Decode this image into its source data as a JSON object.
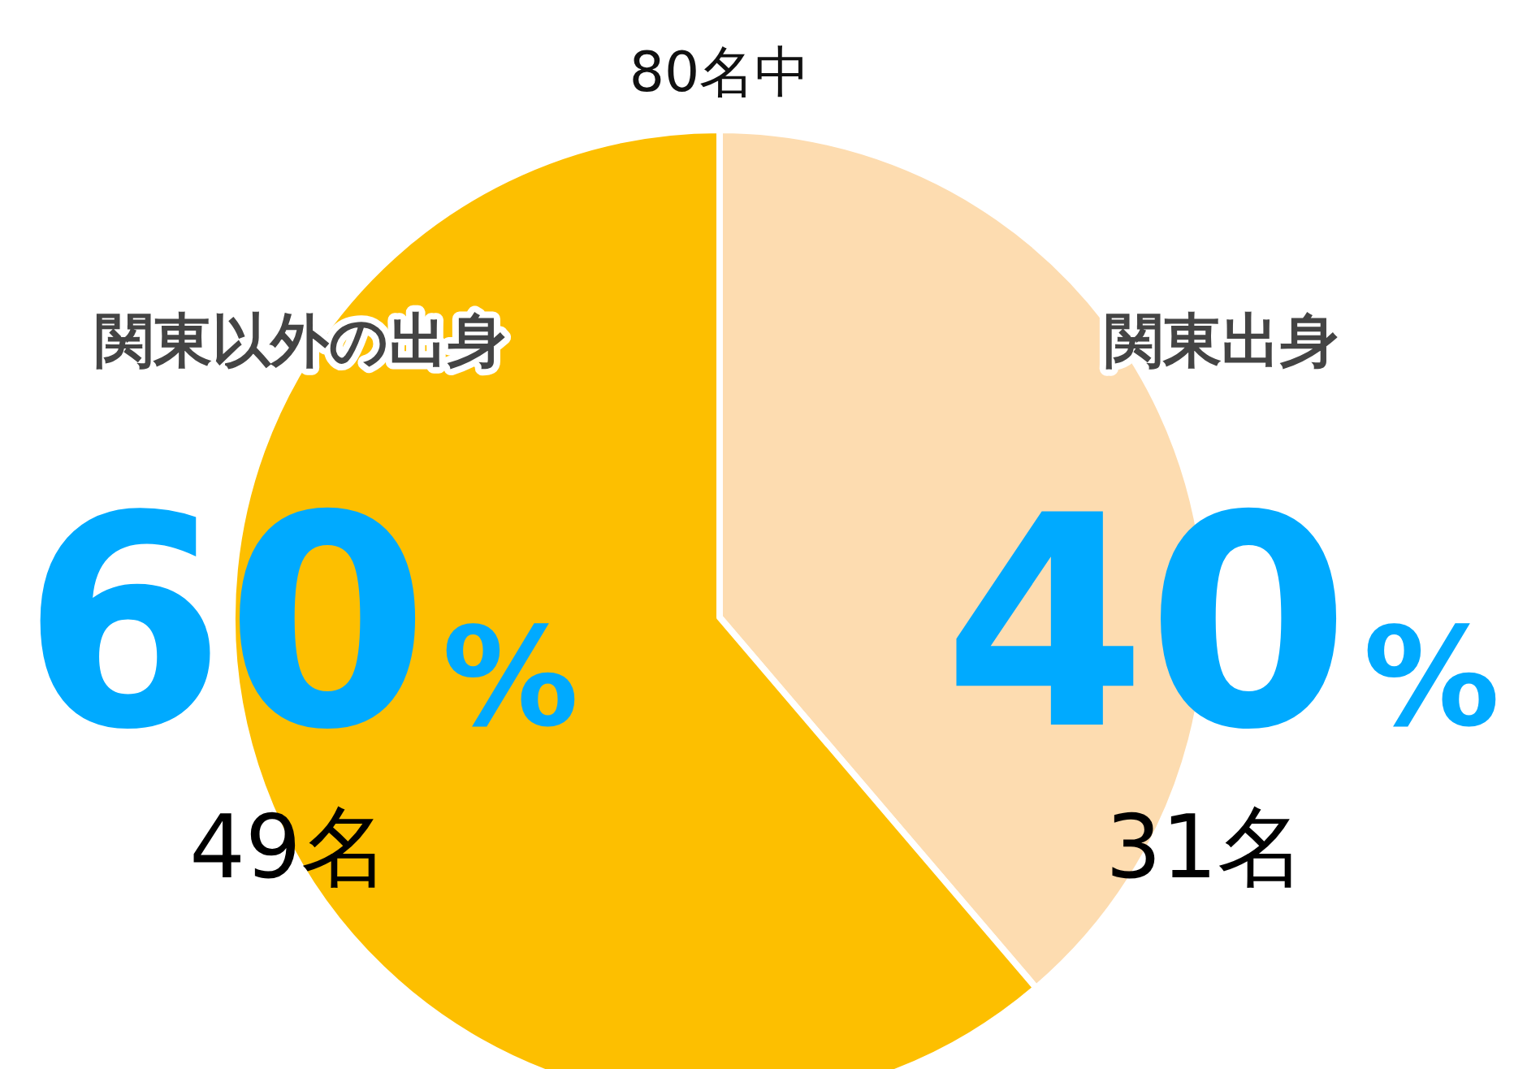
{
  "chart_data": {
    "type": "pie",
    "title": "80名中",
    "categories": [
      "関東出身",
      "関東以外の出身"
    ],
    "values": [
      31,
      49
    ],
    "colors": [
      "#fddcb0",
      "#fdbf00"
    ],
    "value_labels": [
      "31名",
      "49名"
    ],
    "annotations": [
      "40%",
      "60%"
    ]
  }
}
